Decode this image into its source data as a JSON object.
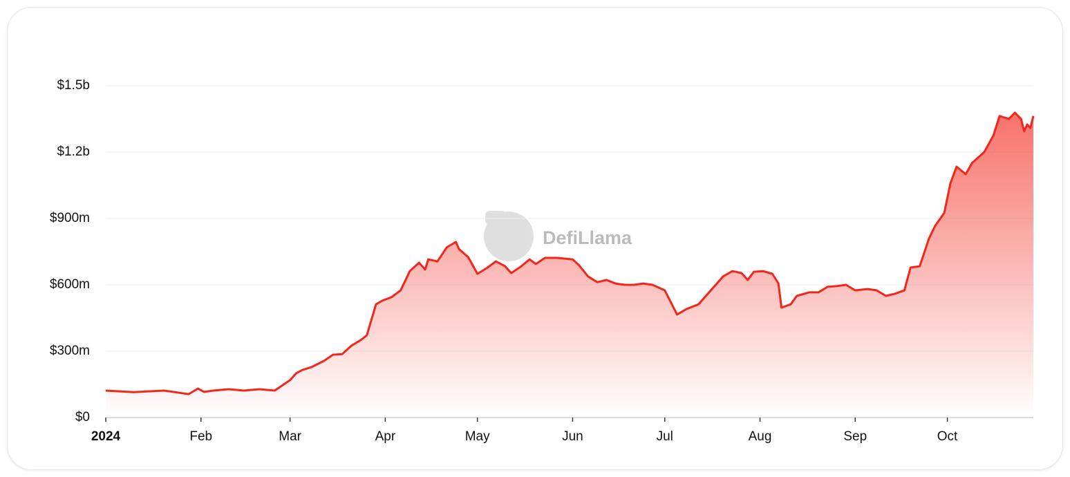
{
  "chart_data": {
    "type": "area",
    "watermark": "DefiLlama",
    "color": "#f4261b",
    "x": [
      "2024-01-01",
      "2024-01-10",
      "2024-01-20",
      "2024-01-25",
      "2024-01-28",
      "2024-01-31",
      "2024-02-02",
      "2024-02-05",
      "2024-02-10",
      "2024-02-15",
      "2024-02-20",
      "2024-02-25",
      "2024-03-01",
      "2024-03-03",
      "2024-03-05",
      "2024-03-08",
      "2024-03-12",
      "2024-03-15",
      "2024-03-18",
      "2024-03-21",
      "2024-03-24",
      "2024-03-26",
      "2024-03-29",
      "2024-03-31",
      "2024-04-03",
      "2024-04-06",
      "2024-04-09",
      "2024-04-12",
      "2024-04-14",
      "2024-04-15",
      "2024-04-18",
      "2024-04-21",
      "2024-04-24",
      "2024-04-25",
      "2024-04-28",
      "2024-05-01",
      "2024-05-04",
      "2024-05-07",
      "2024-05-10",
      "2024-05-12",
      "2024-05-15",
      "2024-05-18",
      "2024-05-20",
      "2024-05-23",
      "2024-05-27",
      "2024-06-01",
      "2024-06-03",
      "2024-06-06",
      "2024-06-09",
      "2024-06-12",
      "2024-06-15",
      "2024-06-18",
      "2024-06-21",
      "2024-06-24",
      "2024-06-27",
      "2024-07-01",
      "2024-07-05",
      "2024-07-08",
      "2024-07-12",
      "2024-07-16",
      "2024-07-20",
      "2024-07-23",
      "2024-07-26",
      "2024-07-28",
      "2024-07-30",
      "2024-08-02",
      "2024-08-05",
      "2024-08-07",
      "2024-08-08",
      "2024-08-11",
      "2024-08-13",
      "2024-08-17",
      "2024-08-20",
      "2024-08-23",
      "2024-08-26",
      "2024-08-29",
      "2024-09-01",
      "2024-09-05",
      "2024-09-08",
      "2024-09-11",
      "2024-09-14",
      "2024-09-17",
      "2024-09-19",
      "2024-09-22",
      "2024-09-25",
      "2024-09-27",
      "2024-09-30",
      "2024-10-02",
      "2024-10-04",
      "2024-10-07",
      "2024-10-09",
      "2024-10-13",
      "2024-10-16",
      "2024-10-18",
      "2024-10-21",
      "2024-10-23",
      "2024-10-25",
      "2024-10-26",
      "2024-10-27",
      "2024-10-28",
      "2024-10-29"
    ],
    "values": [
      122000000,
      115000000,
      122000000,
      112000000,
      106000000,
      131000000,
      116000000,
      122000000,
      128000000,
      122000000,
      128000000,
      122000000,
      169000000,
      200000000,
      215000000,
      228000000,
      256000000,
      284000000,
      287000000,
      325000000,
      350000000,
      372000000,
      512000000,
      528000000,
      544000000,
      575000000,
      662000000,
      700000000,
      669000000,
      715000000,
      706000000,
      769000000,
      794000000,
      762000000,
      725000000,
      650000000,
      675000000,
      706000000,
      684000000,
      653000000,
      681000000,
      715000000,
      694000000,
      722000000,
      722000000,
      715000000,
      690000000,
      638000000,
      612000000,
      622000000,
      606000000,
      600000000,
      600000000,
      606000000,
      600000000,
      575000000,
      466000000,
      490000000,
      512000000,
      575000000,
      638000000,
      662000000,
      653000000,
      622000000,
      659000000,
      662000000,
      650000000,
      606000000,
      497000000,
      512000000,
      550000000,
      566000000,
      566000000,
      591000000,
      594000000,
      600000000,
      575000000,
      581000000,
      575000000,
      550000000,
      560000000,
      575000000,
      678000000,
      684000000,
      809000000,
      866000000,
      925000000,
      1059000000,
      1134000000,
      1100000000,
      1150000000,
      1200000000,
      1275000000,
      1363000000,
      1350000000,
      1378000000,
      1350000000,
      1294000000,
      1325000000,
      1309000000,
      1363000000
    ],
    "xlim": [
      "2024-01-01",
      "2024-10-29"
    ],
    "xticks": [
      {
        "value": "2024-01-01",
        "label": "2024"
      },
      {
        "value": "2024-02-01",
        "label": "Feb"
      },
      {
        "value": "2024-03-01",
        "label": "Mar"
      },
      {
        "value": "2024-04-01",
        "label": "Apr"
      },
      {
        "value": "2024-05-01",
        "label": "May"
      },
      {
        "value": "2024-06-01",
        "label": "Jun"
      },
      {
        "value": "2024-07-01",
        "label": "Jul"
      },
      {
        "value": "2024-08-01",
        "label": "Aug"
      },
      {
        "value": "2024-09-01",
        "label": "Sep"
      },
      {
        "value": "2024-10-01",
        "label": "Oct"
      }
    ],
    "ylim": [
      0,
      1500000000
    ],
    "yticks": [
      {
        "value": 0,
        "label": "$0"
      },
      {
        "value": 300000000,
        "label": "$300m"
      },
      {
        "value": 600000000,
        "label": "$600m"
      },
      {
        "value": 900000000,
        "label": "$900m"
      },
      {
        "value": 1200000000,
        "label": "$1.2b"
      },
      {
        "value": 1500000000,
        "label": "$1.5b"
      }
    ],
    "grid": true
  }
}
